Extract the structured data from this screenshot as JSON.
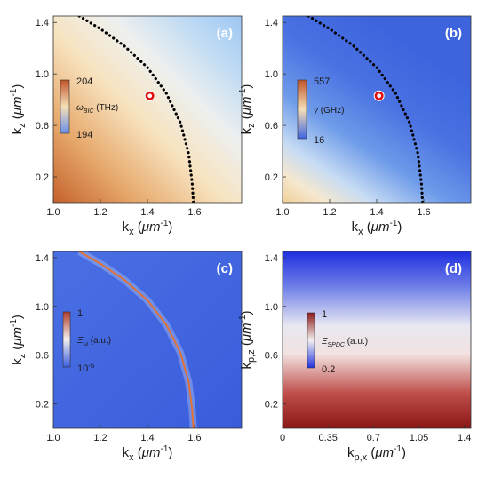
{
  "chart_data": [
    {
      "type": "heatmap",
      "panel_label": "(a)",
      "xlabel": "kx (μm-1)",
      "ylabel": "kz (μm-1)",
      "xlim": [
        1.0,
        1.8
      ],
      "ylim": [
        0.0,
        1.45
      ],
      "x_ticks": [
        "1.0",
        "1.2",
        "1.4",
        "1.6"
      ],
      "x_tick_values": [
        1.0,
        1.2,
        1.4,
        1.6
      ],
      "y_ticks": [
        "0.2",
        "0.6",
        "1.0",
        "1.4"
      ],
      "y_tick_values": [
        0.2,
        0.6,
        1.0,
        1.4
      ],
      "colorbar": {
        "max": "204",
        "min": "194",
        "label": "ωBIC (THz)",
        "colors": [
          "#c0542a",
          "#f6dfb7",
          "#6a8fe8"
        ]
      },
      "curve": {
        "style": "dotted",
        "color": "#000000",
        "points": [
          [
            1.11,
            1.45
          ],
          [
            1.2,
            1.35
          ],
          [
            1.3,
            1.22
          ],
          [
            1.4,
            1.05
          ],
          [
            1.48,
            0.85
          ],
          [
            1.54,
            0.62
          ],
          [
            1.575,
            0.38
          ],
          [
            1.59,
            0.15
          ],
          [
            1.595,
            0.0
          ]
        ]
      },
      "marker": {
        "x": 1.41,
        "y": 0.83,
        "color": "#e01010"
      }
    },
    {
      "type": "heatmap",
      "panel_label": "(b)",
      "xlabel": "kx (μm-1)",
      "ylabel": "kz (μm-1)",
      "xlim": [
        1.0,
        1.8
      ],
      "ylim": [
        0.0,
        1.45
      ],
      "x_ticks": [
        "1.0",
        "1.2",
        "1.4",
        "1.6"
      ],
      "x_tick_values": [
        1.0,
        1.2,
        1.4,
        1.6
      ],
      "y_ticks": [
        "0.2",
        "0.6",
        "1.0",
        "1.4"
      ],
      "y_tick_values": [
        0.2,
        0.6,
        1.0,
        1.4
      ],
      "colorbar": {
        "max": "557",
        "min": "16",
        "label": "γ (GHz)",
        "colors": [
          "#c0542a",
          "#f6dfb7",
          "#3f64e0"
        ]
      },
      "curve": {
        "style": "dotted",
        "color": "#000000",
        "points": [
          [
            1.11,
            1.45
          ],
          [
            1.2,
            1.35
          ],
          [
            1.3,
            1.22
          ],
          [
            1.4,
            1.05
          ],
          [
            1.48,
            0.85
          ],
          [
            1.54,
            0.62
          ],
          [
            1.575,
            0.38
          ],
          [
            1.59,
            0.15
          ],
          [
            1.595,
            0.0
          ]
        ]
      },
      "marker": {
        "x": 1.41,
        "y": 0.83,
        "color": "#e01010"
      }
    },
    {
      "type": "heatmap",
      "panel_label": "(c)",
      "xlabel": "kx (μm-1)",
      "ylabel": "kz (μm-1)",
      "xlim": [
        1.0,
        1.8
      ],
      "ylim": [
        0.0,
        1.45
      ],
      "x_ticks": [
        "1.0",
        "1.2",
        "1.4",
        "1.6"
      ],
      "x_tick_values": [
        1.0,
        1.2,
        1.4,
        1.6
      ],
      "y_ticks": [
        "0.2",
        "0.6",
        "1.0",
        "1.4"
      ],
      "y_tick_values": [
        0.2,
        0.6,
        1.0,
        1.4
      ],
      "colorbar": {
        "max": "1",
        "min": "10-5",
        "label": "Ξω (a.u.)",
        "colors": [
          "#b03a2a",
          "#f3f0f0",
          "#3d5ee0"
        ]
      },
      "curve": {
        "style": "solid",
        "color": "#e0733a",
        "points": [
          [
            1.11,
            1.45
          ],
          [
            1.2,
            1.35
          ],
          [
            1.3,
            1.22
          ],
          [
            1.4,
            1.05
          ],
          [
            1.48,
            0.85
          ],
          [
            1.54,
            0.62
          ],
          [
            1.575,
            0.38
          ],
          [
            1.59,
            0.15
          ],
          [
            1.595,
            0.0
          ]
        ]
      }
    },
    {
      "type": "heatmap",
      "panel_label": "(d)",
      "xlabel": "kp,x (μm-1)",
      "ylabel": "kp,z (μm-1)",
      "xlim": [
        0.0,
        1.45
      ],
      "ylim": [
        0.0,
        1.45
      ],
      "x_ticks": [
        "0",
        "0.35",
        "0.7",
        "1.05",
        "1.4"
      ],
      "x_tick_values": [
        0.0,
        0.35,
        0.7,
        1.05,
        1.4
      ],
      "y_ticks": [
        "0.2",
        "0.6",
        "1.0",
        "1.4"
      ],
      "y_tick_values": [
        0.2,
        0.6,
        1.0,
        1.4
      ],
      "colorbar": {
        "max": "1",
        "min": "0.2",
        "label": "ΞSPDC (a.u.)",
        "colors": [
          "#8b1a1a",
          "#f3f0f0",
          "#2233e0"
        ]
      }
    }
  ]
}
